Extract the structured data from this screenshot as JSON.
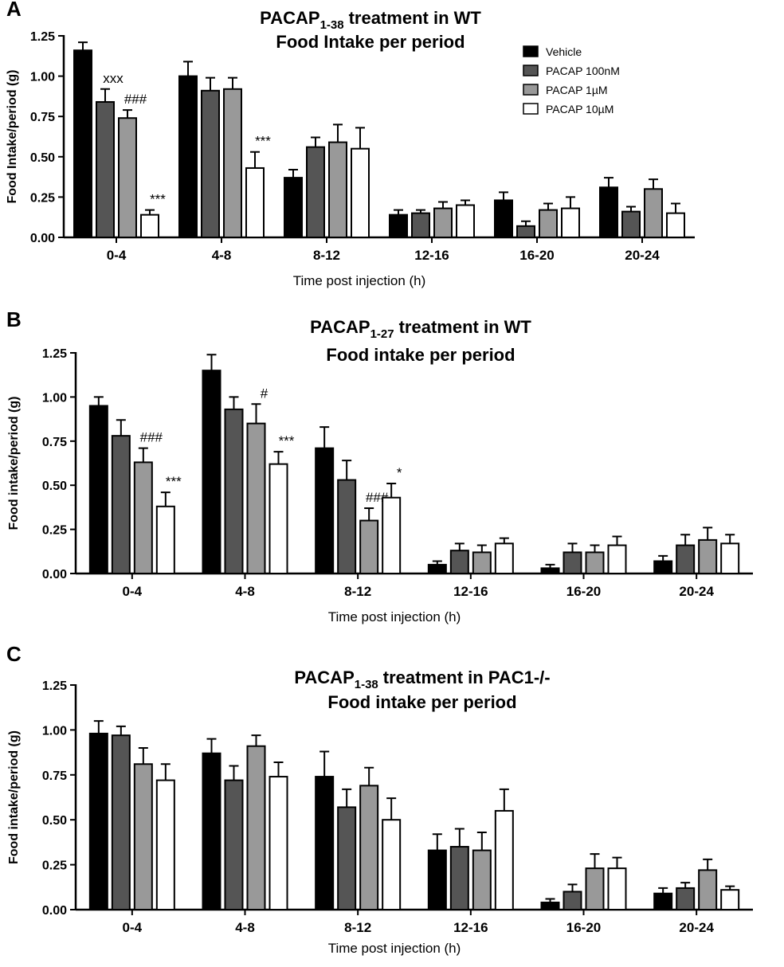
{
  "chart_data": [
    {
      "type": "bar",
      "panel": "A",
      "title": "PACAP",
      "title_subscript": "1-38",
      "title_suffix": "treatment in WT",
      "subtitle": "Food Intake per period",
      "ylabel": "Food Intake/period (g)",
      "xlabel": "Time post injection (h)",
      "categories": [
        "0-4",
        "4-8",
        "8-12",
        "12-16",
        "16-20",
        "20-24"
      ],
      "ylim": [
        0,
        1.25
      ],
      "yticks": [
        {
          "value": 0,
          "label": "0.00"
        },
        0.25,
        {
          "value": 0.5,
          "label": "0.50"
        },
        0.75,
        {
          "value": 1,
          "label": "1.00"
        },
        1.25
      ],
      "legend": "upper right",
      "series": [
        {
          "name": "Vehicle",
          "color": "#000000",
          "values": [
            1.16,
            1.0,
            0.37,
            0.14,
            0.23,
            0.31
          ],
          "errors": [
            0.05,
            0.09,
            0.05,
            0.03,
            0.05,
            0.06
          ],
          "annotations": [
            null,
            null,
            null,
            null,
            null,
            null
          ]
        },
        {
          "name": "PACAP 100nM",
          "color": "#555555",
          "values": [
            0.84,
            0.91,
            0.56,
            0.15,
            0.07,
            0.16
          ],
          "errors": [
            0.08,
            0.08,
            0.06,
            0.02,
            0.03,
            0.03
          ],
          "annotations": [
            "xxx",
            null,
            null,
            null,
            null,
            null
          ]
        },
        {
          "name": "PACAP 1µM",
          "color": "#999999",
          "values": [
            0.74,
            0.92,
            0.59,
            0.18,
            0.17,
            0.3
          ],
          "errors": [
            0.05,
            0.07,
            0.11,
            0.04,
            0.04,
            0.06
          ],
          "annotations": [
            "###",
            null,
            null,
            null,
            null,
            null
          ]
        },
        {
          "name": "PACAP 10µM",
          "color": "#ffffff",
          "values": [
            0.14,
            0.43,
            0.55,
            0.2,
            0.18,
            0.15
          ],
          "errors": [
            0.03,
            0.1,
            0.13,
            0.03,
            0.07,
            0.06
          ],
          "annotations": [
            "***",
            "***",
            null,
            null,
            null,
            null
          ]
        }
      ]
    },
    {
      "type": "bar",
      "panel": "B",
      "title": "PACAP",
      "title_subscript": "1-27",
      "title_suffix": "treatment in WT",
      "subtitle": "Food intake per period",
      "ylabel": "Food intake/period (g)",
      "xlabel": "Time post injection (h)",
      "categories": [
        "0-4",
        "4-8",
        "8-12",
        "12-16",
        "16-20",
        "20-24"
      ],
      "ylim": [
        0,
        1.25
      ],
      "yticks": [
        {
          "value": 0,
          "label": "0.00"
        },
        0.25,
        {
          "value": 0.5,
          "label": "0.50"
        },
        0.75,
        {
          "value": 1,
          "label": "1.00"
        },
        1.25
      ],
      "series": [
        {
          "name": "Vehicle",
          "color": "#000000",
          "values": [
            0.95,
            1.15,
            0.71,
            0.05,
            0.03,
            0.07
          ],
          "errors": [
            0.05,
            0.09,
            0.12,
            0.02,
            0.02,
            0.03
          ],
          "annotations": [
            null,
            null,
            null,
            null,
            null,
            null
          ]
        },
        {
          "name": "PACAP 100nM",
          "color": "#555555",
          "values": [
            0.78,
            0.93,
            0.53,
            0.13,
            0.12,
            0.16
          ],
          "errors": [
            0.09,
            0.07,
            0.11,
            0.04,
            0.05,
            0.06
          ],
          "annotations": [
            null,
            null,
            null,
            null,
            null,
            null
          ]
        },
        {
          "name": "PACAP 1µM",
          "color": "#999999",
          "values": [
            0.63,
            0.85,
            0.3,
            0.12,
            0.12,
            0.19
          ],
          "errors": [
            0.08,
            0.11,
            0.07,
            0.04,
            0.04,
            0.07
          ],
          "annotations": [
            "###",
            "#",
            "###",
            null,
            null,
            null
          ]
        },
        {
          "name": "PACAP 10µM",
          "color": "#ffffff",
          "values": [
            0.38,
            0.62,
            0.43,
            0.17,
            0.16,
            0.17
          ],
          "errors": [
            0.08,
            0.07,
            0.08,
            0.03,
            0.05,
            0.05
          ],
          "annotations": [
            "***",
            "***",
            "*",
            null,
            null,
            null
          ]
        }
      ]
    },
    {
      "type": "bar",
      "panel": "C",
      "title": "PACAP",
      "title_subscript": "1-38",
      "title_suffix": "treatment in PAC1-/-",
      "subtitle": "Food intake per period",
      "ylabel": "Food intake/period (g)",
      "xlabel": "Time post injection (h)",
      "categories": [
        "0-4",
        "4-8",
        "8-12",
        "12-16",
        "16-20",
        "20-24"
      ],
      "ylim": [
        0,
        1.25
      ],
      "yticks": [
        {
          "value": 0,
          "label": "0.00"
        },
        0.25,
        {
          "value": 0.5,
          "label": "0.50"
        },
        0.75,
        {
          "value": 1,
          "label": "1.00"
        },
        1.25
      ],
      "series": [
        {
          "name": "Vehicle",
          "color": "#000000",
          "values": [
            0.98,
            0.87,
            0.74,
            0.33,
            0.04,
            0.09
          ],
          "errors": [
            0.07,
            0.08,
            0.14,
            0.09,
            0.02,
            0.03
          ]
        },
        {
          "name": "PACAP 100nM",
          "color": "#555555",
          "values": [
            0.97,
            0.72,
            0.57,
            0.35,
            0.1,
            0.12
          ],
          "errors": [
            0.05,
            0.08,
            0.1,
            0.1,
            0.04,
            0.03
          ]
        },
        {
          "name": "PACAP 1µM",
          "color": "#999999",
          "values": [
            0.81,
            0.91,
            0.69,
            0.33,
            0.23,
            0.22
          ],
          "errors": [
            0.09,
            0.06,
            0.1,
            0.1,
            0.08,
            0.06
          ]
        },
        {
          "name": "PACAP 10µM",
          "color": "#ffffff",
          "values": [
            0.72,
            0.74,
            0.5,
            0.55,
            0.23,
            0.11
          ],
          "errors": [
            0.09,
            0.08,
            0.12,
            0.12,
            0.06,
            0.02
          ]
        }
      ]
    }
  ]
}
